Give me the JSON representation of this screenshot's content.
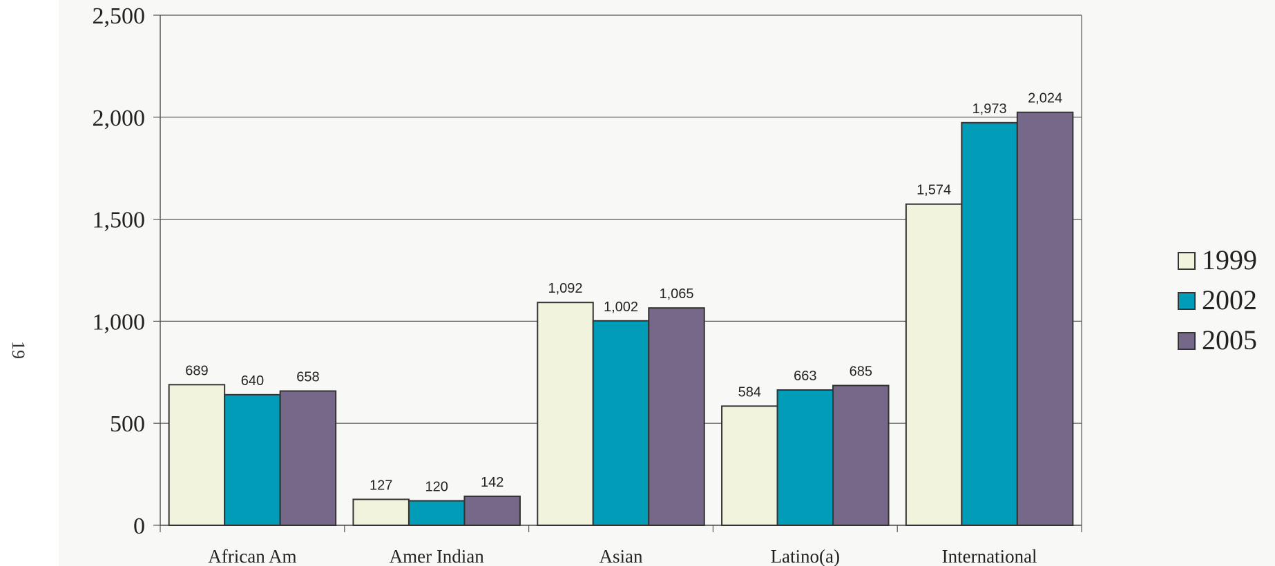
{
  "page_number": "19",
  "chart_data": {
    "type": "bar",
    "categories": [
      "African Am",
      "Amer Indian",
      "Asian",
      "Latino(a)",
      "International"
    ],
    "series": [
      {
        "name": "1999",
        "values": [
          689,
          127,
          1092,
          584,
          1574
        ],
        "labels": [
          "689",
          "127",
          "1,092",
          "584",
          "1,574"
        ],
        "color": "#f1f3dc"
      },
      {
        "name": "2002",
        "values": [
          640,
          120,
          1002,
          663,
          1973
        ],
        "labels": [
          "640",
          "120",
          "1,002",
          "663",
          "1,973"
        ],
        "color": "#009cb8"
      },
      {
        "name": "2005",
        "values": [
          658,
          142,
          1065,
          685,
          2024
        ],
        "labels": [
          "658",
          "142",
          "1,065",
          "685",
          "2,024"
        ],
        "color": "#766888"
      }
    ],
    "ylim": [
      0,
      2500
    ],
    "yticks": [
      0,
      500,
      1000,
      1500,
      2000,
      2500
    ],
    "ytick_labels": [
      "0",
      "500",
      "1,000",
      "1,500",
      "2,000",
      "2,500"
    ],
    "grid": true,
    "legend_position": "right"
  }
}
